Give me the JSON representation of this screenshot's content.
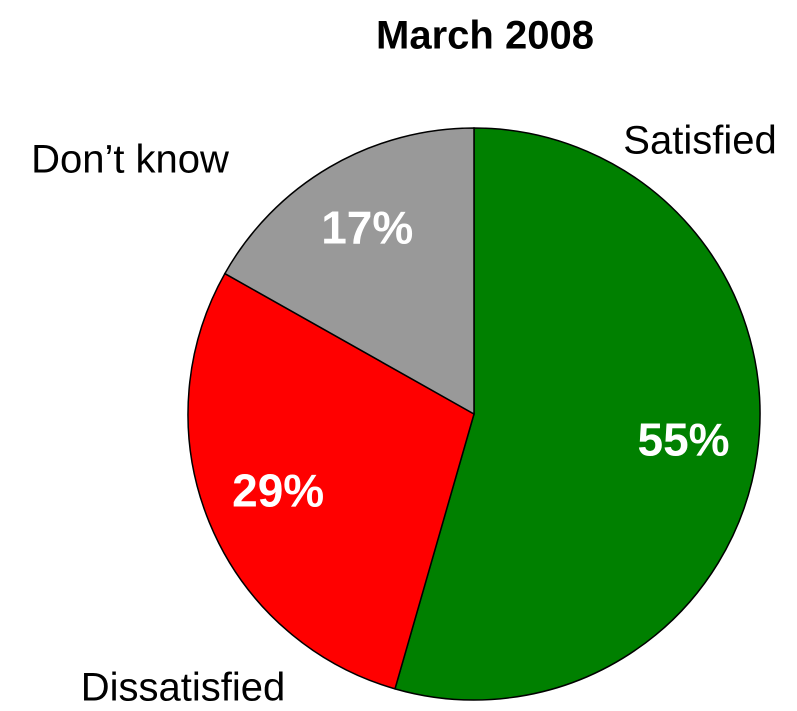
{
  "chart_data": {
    "type": "pie",
    "title": "March 2008",
    "categories": [
      "Satisfied",
      "Dissatisfied",
      "Don’t know"
    ],
    "values": [
      55,
      29,
      17
    ],
    "value_labels": [
      "55%",
      "29%",
      "17%"
    ],
    "colors": [
      "#008000",
      "#ff0000",
      "#999999"
    ]
  }
}
